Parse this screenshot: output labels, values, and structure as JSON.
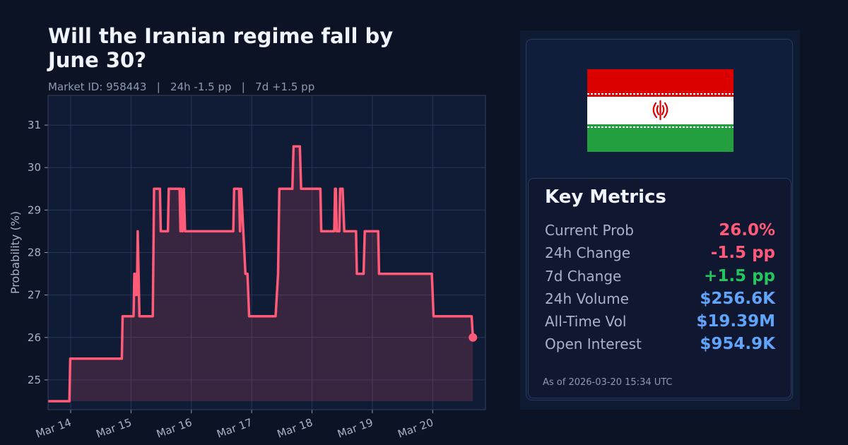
{
  "header": {
    "title": "Will the Iranian regime fall by June 30?",
    "subtitle": "Market ID: 958443   |   24h -1.5 pp   |   7d +1.5 pp"
  },
  "colors": {
    "background": "#0c1324",
    "plot_background": "#101b36",
    "line": "#ff5a78",
    "negative": "#ff5a78",
    "positive": "#22c55e",
    "volume": "#60a5fa",
    "flag_red": "#da0000",
    "flag_white": "#ffffff",
    "flag_green": "#239f40"
  },
  "chart_data": {
    "type": "line",
    "xlabel": "",
    "ylabel": "Probability (%)",
    "xlim": [
      "2026-03-13 15:00",
      "2026-03-20 21:00"
    ],
    "ylim": [
      24.3,
      31.7
    ],
    "y_ticks": [
      25,
      26,
      27,
      28,
      29,
      30,
      31
    ],
    "x_ticks": [
      {
        "t": "2026-03-14 00:00",
        "label": "Mar 14"
      },
      {
        "t": "2026-03-15 00:00",
        "label": "Mar 15"
      },
      {
        "t": "2026-03-16 00:00",
        "label": "Mar 16"
      },
      {
        "t": "2026-03-17 00:00",
        "label": "Mar 17"
      },
      {
        "t": "2026-03-18 00:00",
        "label": "Mar 18"
      },
      {
        "t": "2026-03-19 00:00",
        "label": "Mar 19"
      },
      {
        "t": "2026-03-20 00:00",
        "label": "Mar 20"
      }
    ],
    "grid": true,
    "fill_under": true,
    "series": [
      {
        "points": [
          [
            "2026-03-13 15:30",
            24.5
          ],
          [
            "2026-03-13 23:30",
            24.5
          ],
          [
            "2026-03-13 23:50",
            25.5
          ],
          [
            "2026-03-14 20:20",
            25.5
          ],
          [
            "2026-03-14 20:40",
            26.5
          ],
          [
            "2026-03-15 01:00",
            26.5
          ],
          [
            "2026-03-15 01:20",
            27.5
          ],
          [
            "2026-03-15 01:40",
            27.0
          ],
          [
            "2026-03-15 02:00",
            27.5
          ],
          [
            "2026-03-15 02:20",
            27.0
          ],
          [
            "2026-03-15 02:40",
            28.5
          ],
          [
            "2026-03-15 03:20",
            26.5
          ],
          [
            "2026-03-15 08:40",
            26.5
          ],
          [
            "2026-03-15 09:10",
            29.5
          ],
          [
            "2026-03-15 11:30",
            29.5
          ],
          [
            "2026-03-15 11:50",
            28.5
          ],
          [
            "2026-03-15 14:40",
            28.5
          ],
          [
            "2026-03-15 15:00",
            29.5
          ],
          [
            "2026-03-15 19:20",
            29.5
          ],
          [
            "2026-03-15 19:40",
            28.5
          ],
          [
            "2026-03-15 20:00",
            29.5
          ],
          [
            "2026-03-15 20:30",
            28.5
          ],
          [
            "2026-03-15 21:00",
            29.5
          ],
          [
            "2026-03-15 21:30",
            28.5
          ],
          [
            "2026-03-16 16:40",
            28.5
          ],
          [
            "2026-03-16 17:00",
            29.5
          ],
          [
            "2026-03-16 19:00",
            29.5
          ],
          [
            "2026-03-16 19:20",
            28.5
          ],
          [
            "2026-03-16 19:50",
            29.5
          ],
          [
            "2026-03-16 21:30",
            27.5
          ],
          [
            "2026-03-16 22:20",
            27.5
          ],
          [
            "2026-03-16 23:00",
            26.5
          ],
          [
            "2026-03-17 09:30",
            26.5
          ],
          [
            "2026-03-17 10:30",
            27.5
          ],
          [
            "2026-03-17 11:00",
            29.5
          ],
          [
            "2026-03-17 16:10",
            29.5
          ],
          [
            "2026-03-17 16:40",
            30.5
          ],
          [
            "2026-03-17 19:10",
            30.5
          ],
          [
            "2026-03-17 19:40",
            29.5
          ],
          [
            "2026-03-18 03:20",
            29.5
          ],
          [
            "2026-03-18 03:40",
            28.5
          ],
          [
            "2026-03-18 08:50",
            28.5
          ],
          [
            "2026-03-18 09:10",
            29.5
          ],
          [
            "2026-03-18 09:30",
            29.5
          ],
          [
            "2026-03-18 09:50",
            28.5
          ],
          [
            "2026-03-18 10:50",
            28.5
          ],
          [
            "2026-03-18 11:10",
            29.5
          ],
          [
            "2026-03-18 12:10",
            29.5
          ],
          [
            "2026-03-18 12:50",
            28.5
          ],
          [
            "2026-03-18 17:30",
            28.5
          ],
          [
            "2026-03-18 17:50",
            27.5
          ],
          [
            "2026-03-18 20:30",
            27.5
          ],
          [
            "2026-03-18 21:00",
            28.5
          ],
          [
            "2026-03-19 02:20",
            28.5
          ],
          [
            "2026-03-19 02:40",
            27.5
          ],
          [
            "2026-03-19 23:40",
            27.5
          ],
          [
            "2026-03-20 00:20",
            26.5
          ],
          [
            "2026-03-20 15:30",
            26.5
          ],
          [
            "2026-03-20 16:00",
            26.0
          ]
        ]
      }
    ],
    "last_point": [
      "2026-03-20 16:00",
      26.0
    ]
  },
  "metrics": {
    "title": "Key Metrics",
    "rows": [
      {
        "label": "Current Prob",
        "value": "26.0%",
        "color": "#ff5a78"
      },
      {
        "label": "24h Change",
        "value": "-1.5 pp",
        "color": "#ff5a78"
      },
      {
        "label": "7d Change",
        "value": "+1.5 pp",
        "color": "#22c55e"
      },
      {
        "label": "24h Volume",
        "value": "$256.6K",
        "color": "#60a5fa"
      },
      {
        "label": "All-Time Vol",
        "value": "$19.39M",
        "color": "#60a5fa"
      },
      {
        "label": "Open Interest",
        "value": "$954.9K",
        "color": "#60a5fa"
      }
    ],
    "as_of": "As of 2026-03-20 15:34 UTC"
  }
}
